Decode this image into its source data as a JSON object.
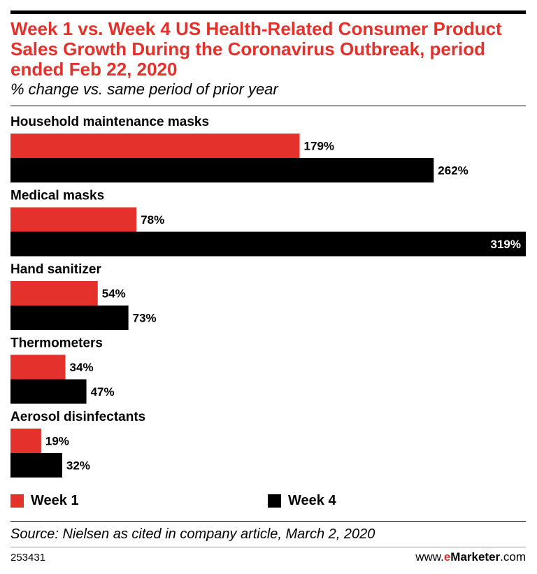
{
  "chart_data": {
    "type": "bar",
    "orientation": "horizontal",
    "title": "Week 1 vs. Week 4 US Health-Related Consumer Product Sales Growth During the Coronavirus Outbreak, period ended Feb 22, 2020",
    "subtitle": "% change vs. same period of prior year",
    "categories": [
      "Household maintenance masks",
      "Medical masks",
      "Hand sanitizer",
      "Thermometers",
      "Aerosol disinfectants"
    ],
    "series": [
      {
        "name": "Week 1",
        "color": "#e4312b",
        "values": [
          179,
          78,
          54,
          34,
          19
        ],
        "labels": [
          "179%",
          "78%",
          "54%",
          "34%",
          "19%"
        ]
      },
      {
        "name": "Week 4",
        "color": "#000000",
        "values": [
          262,
          319,
          73,
          47,
          32
        ],
        "labels": [
          "262%",
          "319%",
          "73%",
          "47%",
          "32%"
        ]
      }
    ],
    "xlim": [
      0,
      319
    ],
    "legend_position": "bottom",
    "grid": false
  },
  "footer": {
    "source": "Source: Nielsen as cited in company article, March 2, 2020",
    "chart_id": "253431",
    "brand_prefix": "www.",
    "brand_e": "e",
    "brand_main": "Marketer",
    "brand_suffix": ".com"
  }
}
